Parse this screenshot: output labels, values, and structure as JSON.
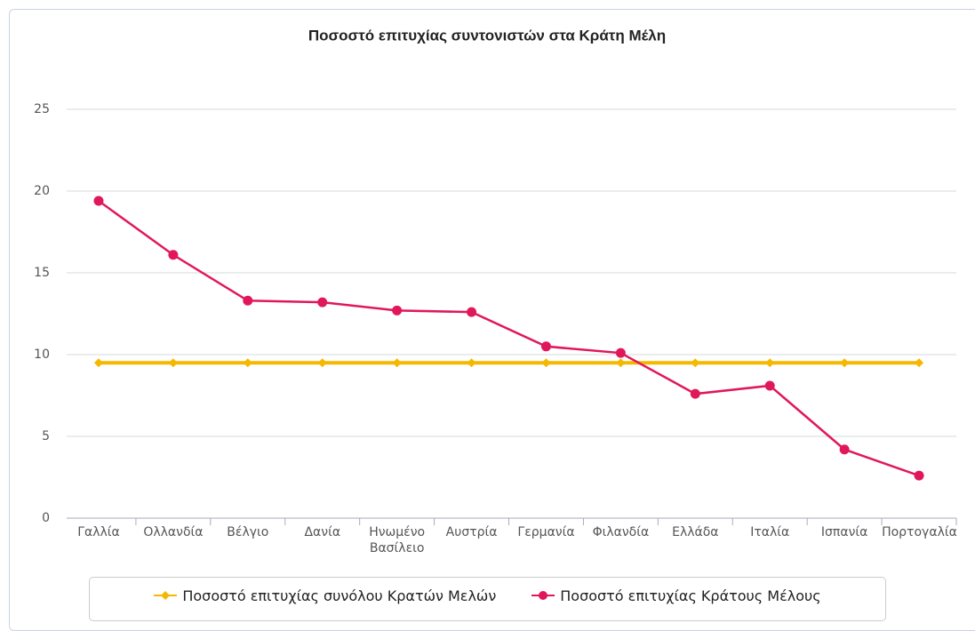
{
  "chart_data": {
    "type": "line",
    "title": "Ποσοστό επιτυχίας συντονιστών στα Κράτη Μέλη",
    "categories": [
      "Γαλλία",
      "Ολλανδία",
      "Βέλγιο",
      "Δανία",
      "Ηνωμένο Βασίλειο",
      "Αυστρία",
      "Γερμανία",
      "Φιλανδία",
      "Ελλάδα",
      "Ιταλία",
      "Ισπανία",
      "Πορτογαλία"
    ],
    "series": [
      {
        "name": "Ποσοστό επιτυχίας συνόλου Κρατών Μελών",
        "color": "#f5b800",
        "marker": "diamond",
        "values": [
          9.5,
          9.5,
          9.5,
          9.5,
          9.5,
          9.5,
          9.5,
          9.5,
          9.5,
          9.5,
          9.5,
          9.5
        ]
      },
      {
        "name": "Ποσοστό επιτυχίας Κράτους Μέλους",
        "color": "#e0185a",
        "marker": "circle",
        "values": [
          19.4,
          16.1,
          13.3,
          13.2,
          12.7,
          12.6,
          10.5,
          10.1,
          7.6,
          8.1,
          4.2,
          2.6
        ]
      }
    ],
    "ylim": [
      0,
      25
    ],
    "yticks": [
      0,
      5,
      10,
      15,
      20,
      25
    ],
    "grid": true,
    "legend": "bottom"
  }
}
